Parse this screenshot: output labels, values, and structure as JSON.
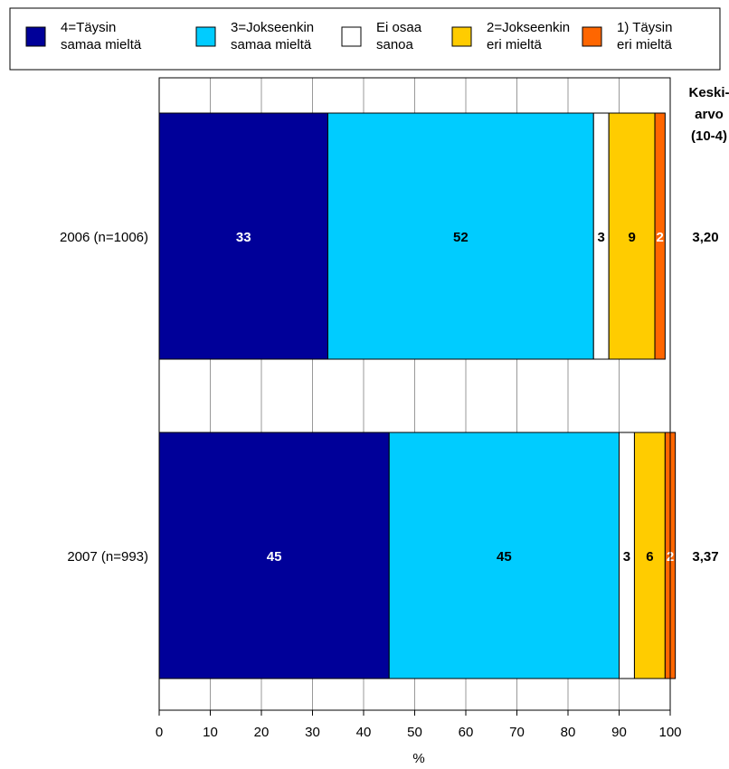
{
  "chart_data": {
    "type": "bar",
    "orientation": "horizontal",
    "stacked": true,
    "categories": [
      "2006 (n=1006)",
      "2007 (n=993)"
    ],
    "series": [
      {
        "name": "4=Täysin samaa mieltä",
        "name_lines": [
          "4=Täysin",
          "samaa mieltä"
        ],
        "color": "#000099",
        "label_color": "#ffffff",
        "values": [
          33,
          45
        ]
      },
      {
        "name": "3=Jokseenkin samaa mieltä",
        "name_lines": [
          "3=Jokseenkin",
          "samaa mieltä"
        ],
        "color": "#00CCFF",
        "label_color": "#000000",
        "values": [
          52,
          45
        ]
      },
      {
        "name": "Ei osaa sanoa",
        "name_lines": [
          "Ei osaa",
          "sanoa"
        ],
        "color": "#FFFFFF",
        "label_color": "#000000",
        "values": [
          3,
          3
        ]
      },
      {
        "name": "2=Jokseenkin eri mieltä",
        "name_lines": [
          "2=Jokseenkin",
          "eri mieltä"
        ],
        "color": "#FFCC00",
        "label_color": "#000000",
        "values": [
          9,
          6
        ]
      },
      {
        "name": "1) Täysin eri mieltä",
        "name_lines": [
          "1) Täysin",
          "eri mieltä"
        ],
        "color": "#FF6600",
        "label_color": "#ffffff",
        "values": [
          2,
          2
        ]
      }
    ],
    "xlabel": "%",
    "xlim": [
      0,
      100
    ],
    "xticks": [
      0,
      10,
      20,
      30,
      40,
      50,
      60,
      70,
      80,
      90,
      100
    ],
    "grid": true,
    "legend_position": "top",
    "mean_header": [
      "Keski-",
      "arvo",
      "(10-4)"
    ],
    "means": [
      "3,20",
      "3,37"
    ]
  }
}
